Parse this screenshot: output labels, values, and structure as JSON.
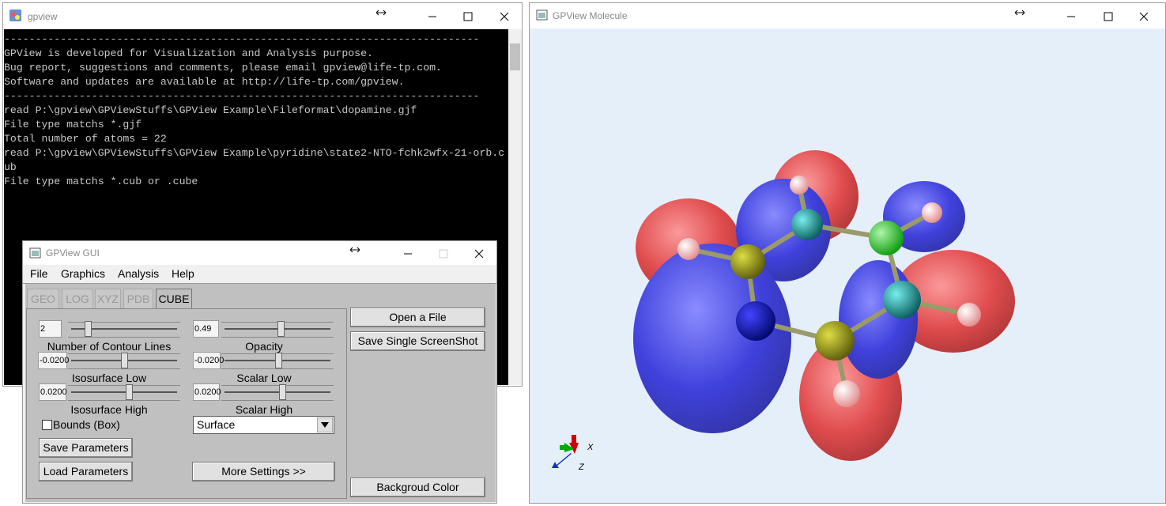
{
  "console_window": {
    "title": "gpview",
    "lines": [
      "----------------------------------------------------------------------------",
      "GPView is developed for Visualization and Analysis purpose.",
      "Bug report, suggestions and comments, please email gpview@life-tp.com.",
      "Software and updates are available at http://life-tp.com/gpview.",
      "----------------------------------------------------------------------------",
      "read P:\\gpview\\GPViewStuffs\\GPView Example\\Fileformat\\dopamine.gjf",
      "File type matchs *.gjf",
      "Total number of atoms = 22",
      "read P:\\gpview\\GPViewStuffs\\GPView Example\\pyridine\\state2-NTO-fchk2wfx-21-orb.c",
      "ub",
      "File type matchs *.cub or .cube"
    ]
  },
  "gui_window": {
    "title": "GPView GUI",
    "menu": [
      "File",
      "Graphics",
      "Analysis",
      "Help"
    ],
    "tabs": [
      "GEO",
      "LOG",
      "XYZ",
      "PDB",
      "CUBE"
    ],
    "sliders": [
      {
        "value": "2",
        "label": "Number of Contour Lines"
      },
      {
        "value": "0.49",
        "label": "Opacity"
      },
      {
        "value": "-0.0200",
        "label": "Isosurface Low"
      },
      {
        "value": "-0.0200",
        "label": "Scalar Low"
      },
      {
        "value": "0.0200",
        "label": "Isosurface High"
      },
      {
        "value": "0.0200",
        "label": "Scalar High"
      }
    ],
    "checkbox": "Bounds (Box)",
    "dropdown": "Surface",
    "buttons": {
      "save_parameters": "Save Parameters",
      "load_parameters": "Load Parameters",
      "more_settings": "More Settings >>",
      "open_file": "Open a File",
      "save_screenshot": "Save Single ScreenShot",
      "background_color": "Backgroud Color"
    }
  },
  "molecule_window": {
    "title": "GPView Molecule",
    "axis_labels": [
      "X",
      "Z"
    ]
  }
}
